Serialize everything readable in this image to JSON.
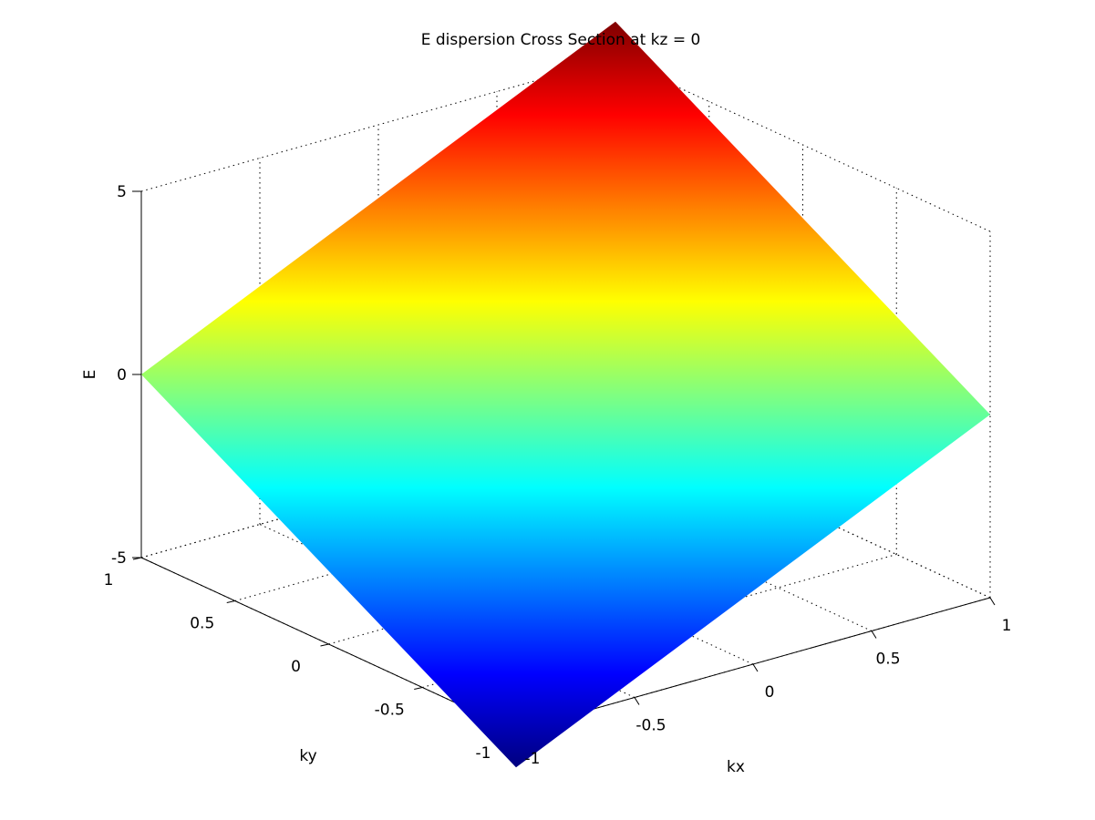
{
  "chart_data": {
    "type": "surface",
    "title": "E dispersion Cross Section at kz = 0",
    "xlabel": "kx",
    "ylabel": "ky",
    "zlabel": "E",
    "xlim": [
      -1,
      1
    ],
    "ylim": [
      -1,
      1
    ],
    "zlim": [
      -5,
      5
    ],
    "x_ticks": [
      "-1",
      "-0.5",
      "0",
      "0.5",
      "1"
    ],
    "y_ticks": [
      "-1",
      "-0.5",
      "0",
      "0.5",
      "1"
    ],
    "z_ticks": [
      "-5",
      "0",
      "5"
    ],
    "grid": true,
    "colormap": "jet",
    "surface": {
      "formula": "E = 3*kx + 3*ky",
      "corners": [
        {
          "kx": -1,
          "ky": -1,
          "E": -6
        },
        {
          "kx": 1,
          "ky": -1,
          "E": 0
        },
        {
          "kx": 1,
          "ky": 1,
          "E": 6
        },
        {
          "kx": -1,
          "ky": 1,
          "E": 0
        }
      ]
    }
  }
}
